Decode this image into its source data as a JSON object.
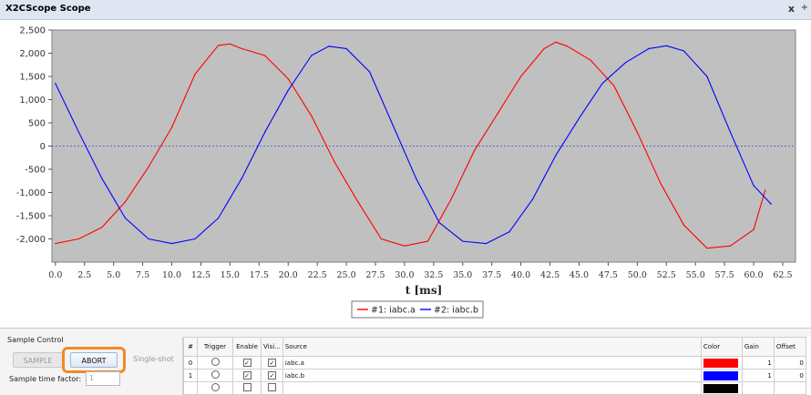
{
  "window": {
    "title": "X2CScope Scope",
    "close_glyph": "x",
    "more_glyph": "+"
  },
  "chart_data": {
    "type": "line",
    "xlabel": "t [ms]",
    "ylabel": "",
    "xlim": [
      -0.3,
      63.6
    ],
    "ylim": [
      -2500,
      2500
    ],
    "x_ticks": [
      0.0,
      2.5,
      5.0,
      7.5,
      10.0,
      12.5,
      15.0,
      17.5,
      20.0,
      22.5,
      25.0,
      27.5,
      30.0,
      32.5,
      35.0,
      37.5,
      40.0,
      42.5,
      45.0,
      47.5,
      50.0,
      52.5,
      55.0,
      57.5,
      60.0,
      62.5
    ],
    "y_ticks": [
      -2000,
      -1500,
      -1000,
      -500,
      0,
      500,
      1000,
      1500,
      2000,
      2500
    ],
    "y_tick_labels": [
      "-2,000",
      "-1,500",
      "-1,000",
      "-500",
      "0",
      "500",
      "1,000",
      "1,500",
      "2,000",
      "2,500"
    ],
    "grid": false,
    "zero_line": true,
    "background": "#c0c0c0",
    "legend_position": "bottom-center",
    "series": [
      {
        "name": "#1: iabc.a",
        "color": "#ff0000",
        "x": [
          0,
          2,
          4,
          6,
          8,
          10,
          12,
          14,
          15,
          16,
          18,
          20,
          22,
          24,
          26,
          28,
          30,
          32,
          34,
          36,
          38,
          40,
          42,
          43,
          44,
          46,
          48,
          50,
          52,
          54,
          56,
          58,
          60,
          61
        ],
        "values": [
          -2100,
          -2000,
          -1750,
          -1200,
          -450,
          400,
          1550,
          2170,
          2200,
          2100,
          1950,
          1450,
          650,
          -350,
          -1200,
          -2000,
          -2150,
          -2050,
          -1150,
          -100,
          700,
          1500,
          2100,
          2240,
          2150,
          1850,
          1300,
          300,
          -800,
          -1700,
          -2200,
          -2150,
          -1800,
          -950
        ]
      },
      {
        "name": "#2: iabc.b",
        "color": "#0000ff",
        "x": [
          0,
          2,
          4,
          6,
          8,
          10,
          12,
          14,
          16,
          18,
          20,
          22,
          23.5,
          25,
          27,
          29,
          31,
          33,
          35,
          37,
          39,
          41,
          43,
          45,
          47,
          49,
          51,
          52.5,
          54,
          56,
          58,
          60,
          61.5
        ],
        "values": [
          1350,
          300,
          -700,
          -1550,
          -2000,
          -2100,
          -2000,
          -1550,
          -700,
          300,
          1200,
          1950,
          2150,
          2100,
          1600,
          450,
          -700,
          -1650,
          -2050,
          -2100,
          -1850,
          -1150,
          -200,
          600,
          1350,
          1800,
          2100,
          2160,
          2050,
          1500,
          300,
          -850,
          -1250
        ]
      }
    ]
  },
  "sample_control": {
    "title": "Sample Control",
    "sample_label": "SAMPLE",
    "abort_label": "ABORT",
    "single_shot_label": "Single-shot",
    "time_factor_label": "Sample time factor:",
    "time_factor_value": "1"
  },
  "channel_table": {
    "headers": {
      "num": "#",
      "trigger": "Trigger",
      "enable": "Enable",
      "visible": "Visi...",
      "source": "Source",
      "color": "Color",
      "gain": "Gain",
      "offset": "Offset"
    },
    "rows": [
      {
        "num": "0",
        "source": "iabc.a",
        "color": "#ff0000",
        "gain": "1",
        "offset": "0"
      },
      {
        "num": "1",
        "source": "iabc.b",
        "color": "#0000ff",
        "gain": "1",
        "offset": "0"
      }
    ],
    "partial_row_color": "#000000"
  }
}
